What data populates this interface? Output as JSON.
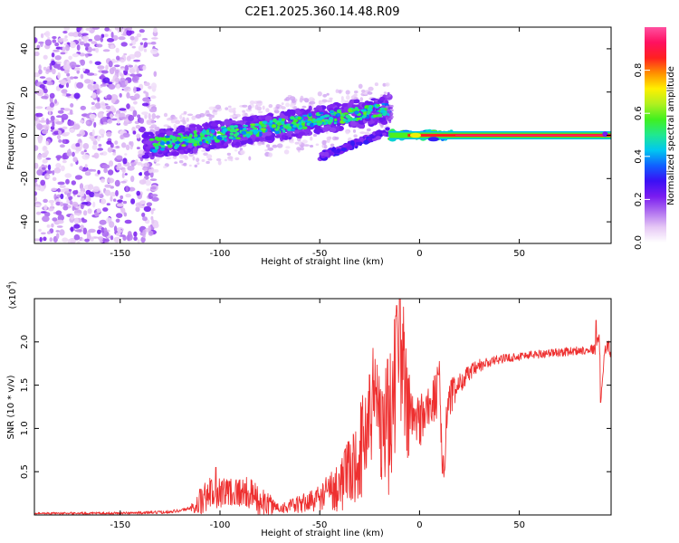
{
  "title": "C2E1.2025.360.14.48.R09",
  "chart_data": [
    {
      "type": "heatmap",
      "name": "spectrogram",
      "xlabel": "Height of straight line (km)",
      "ylabel": "Frequency (Hz)",
      "xlim": [
        -193,
        96
      ],
      "ylim": [
        -50,
        50
      ],
      "xticks": [
        -150,
        -100,
        -50,
        0,
        50
      ],
      "yticks": [
        -40,
        -20,
        0,
        20,
        40
      ],
      "colorbar": {
        "label": "Normalized spectral amplitude",
        "range": [
          0,
          1
        ],
        "ticks": [
          "0.0",
          "0.2",
          "0.4",
          "0.6",
          "0.8"
        ],
        "colormap": [
          "#ffffff",
          "#e6c8f5",
          "#b070f0",
          "#7a1cf0",
          "#3a10f5",
          "#1060ff",
          "#00c8f0",
          "#20e890",
          "#40f020",
          "#b0f020",
          "#fff000",
          "#ff9000",
          "#ff2020",
          "#ff1060",
          "#ff50a0"
        ]
      },
      "features": {
        "noise_region_x": [
          -193,
          -138
        ],
        "signal_band_x": [
          -138,
          -15
        ],
        "signal_band_freq_start": -5,
        "signal_band_freq_end": 12,
        "echo_branch_x": [
          -50,
          -15
        ],
        "echo_branch_freq": [
          -10,
          2
        ],
        "carrier_line_x": [
          -15,
          96
        ],
        "carrier_freq": 0
      }
    },
    {
      "type": "line",
      "name": "snr",
      "xlabel": "Height of straight line (km)",
      "ylabel": "SNR (10 * v/v)",
      "scale_label": "(x10",
      "scale_exp": "4",
      "scale_close": ")",
      "xlim": [
        -193,
        96
      ],
      "ylim": [
        0,
        2.5
      ],
      "xticks": [
        -150,
        -100,
        -50,
        0,
        50
      ],
      "yticks": [
        0.5,
        1.0,
        1.5,
        2.0
      ],
      "yticklabels": [
        "0.5",
        "1.0",
        "1.5",
        "2.0"
      ],
      "color": "#ee3030",
      "envelope": [
        [
          -193,
          0.02
        ],
        [
          -150,
          0.02
        ],
        [
          -130,
          0.03
        ],
        [
          -120,
          0.05
        ],
        [
          -112,
          0.1
        ],
        [
          -105,
          0.25
        ],
        [
          -95,
          0.28
        ],
        [
          -85,
          0.25
        ],
        [
          -80,
          0.15
        ],
        [
          -70,
          0.08
        ],
        [
          -60,
          0.12
        ],
        [
          -50,
          0.2
        ],
        [
          -40,
          0.35
        ],
        [
          -33,
          0.55
        ],
        [
          -28,
          0.85
        ],
        [
          -25,
          1.2
        ],
        [
          -22,
          1.4
        ],
        [
          -19,
          1.1
        ],
        [
          -16,
          0.9
        ],
        [
          -13,
          1.4
        ],
        [
          -10,
          2.1
        ],
        [
          -8,
          1.6
        ],
        [
          -5,
          1.1
        ],
        [
          0,
          1.1
        ],
        [
          5,
          1.25
        ],
        [
          8,
          1.35
        ],
        [
          10,
          1.5
        ],
        [
          12,
          0.5
        ],
        [
          14,
          1.3
        ],
        [
          18,
          1.45
        ],
        [
          22,
          1.58
        ],
        [
          30,
          1.72
        ],
        [
          40,
          1.8
        ],
        [
          55,
          1.85
        ],
        [
          70,
          1.88
        ],
        [
          80,
          1.9
        ],
        [
          88,
          1.92
        ],
        [
          90,
          2.05
        ],
        [
          91,
          1.4
        ],
        [
          93,
          1.95
        ],
        [
          96,
          1.92
        ]
      ],
      "noise": [
        [
          -193,
          0.01
        ],
        [
          -115,
          0.02
        ],
        [
          -110,
          0.18
        ],
        [
          -80,
          0.18
        ],
        [
          -70,
          0.06
        ],
        [
          -50,
          0.15
        ],
        [
          -35,
          0.4
        ],
        [
          -25,
          0.7
        ],
        [
          -15,
          0.8
        ],
        [
          -8,
          0.9
        ],
        [
          -3,
          0.35
        ],
        [
          5,
          0.3
        ],
        [
          12,
          0.3
        ],
        [
          20,
          0.12
        ],
        [
          40,
          0.05
        ],
        [
          85,
          0.05
        ],
        [
          96,
          0.1
        ]
      ],
      "spikes": [
        [
          -10,
          2.5
        ],
        [
          -11.5,
          2.42
        ],
        [
          -25,
          1.62
        ],
        [
          -16,
          1.8
        ],
        [
          11.5,
          0.48
        ],
        [
          9.5,
          1.62
        ],
        [
          88.5,
          2.25
        ],
        [
          90.8,
          1.3
        ],
        [
          -102,
          0.55
        ]
      ]
    }
  ]
}
